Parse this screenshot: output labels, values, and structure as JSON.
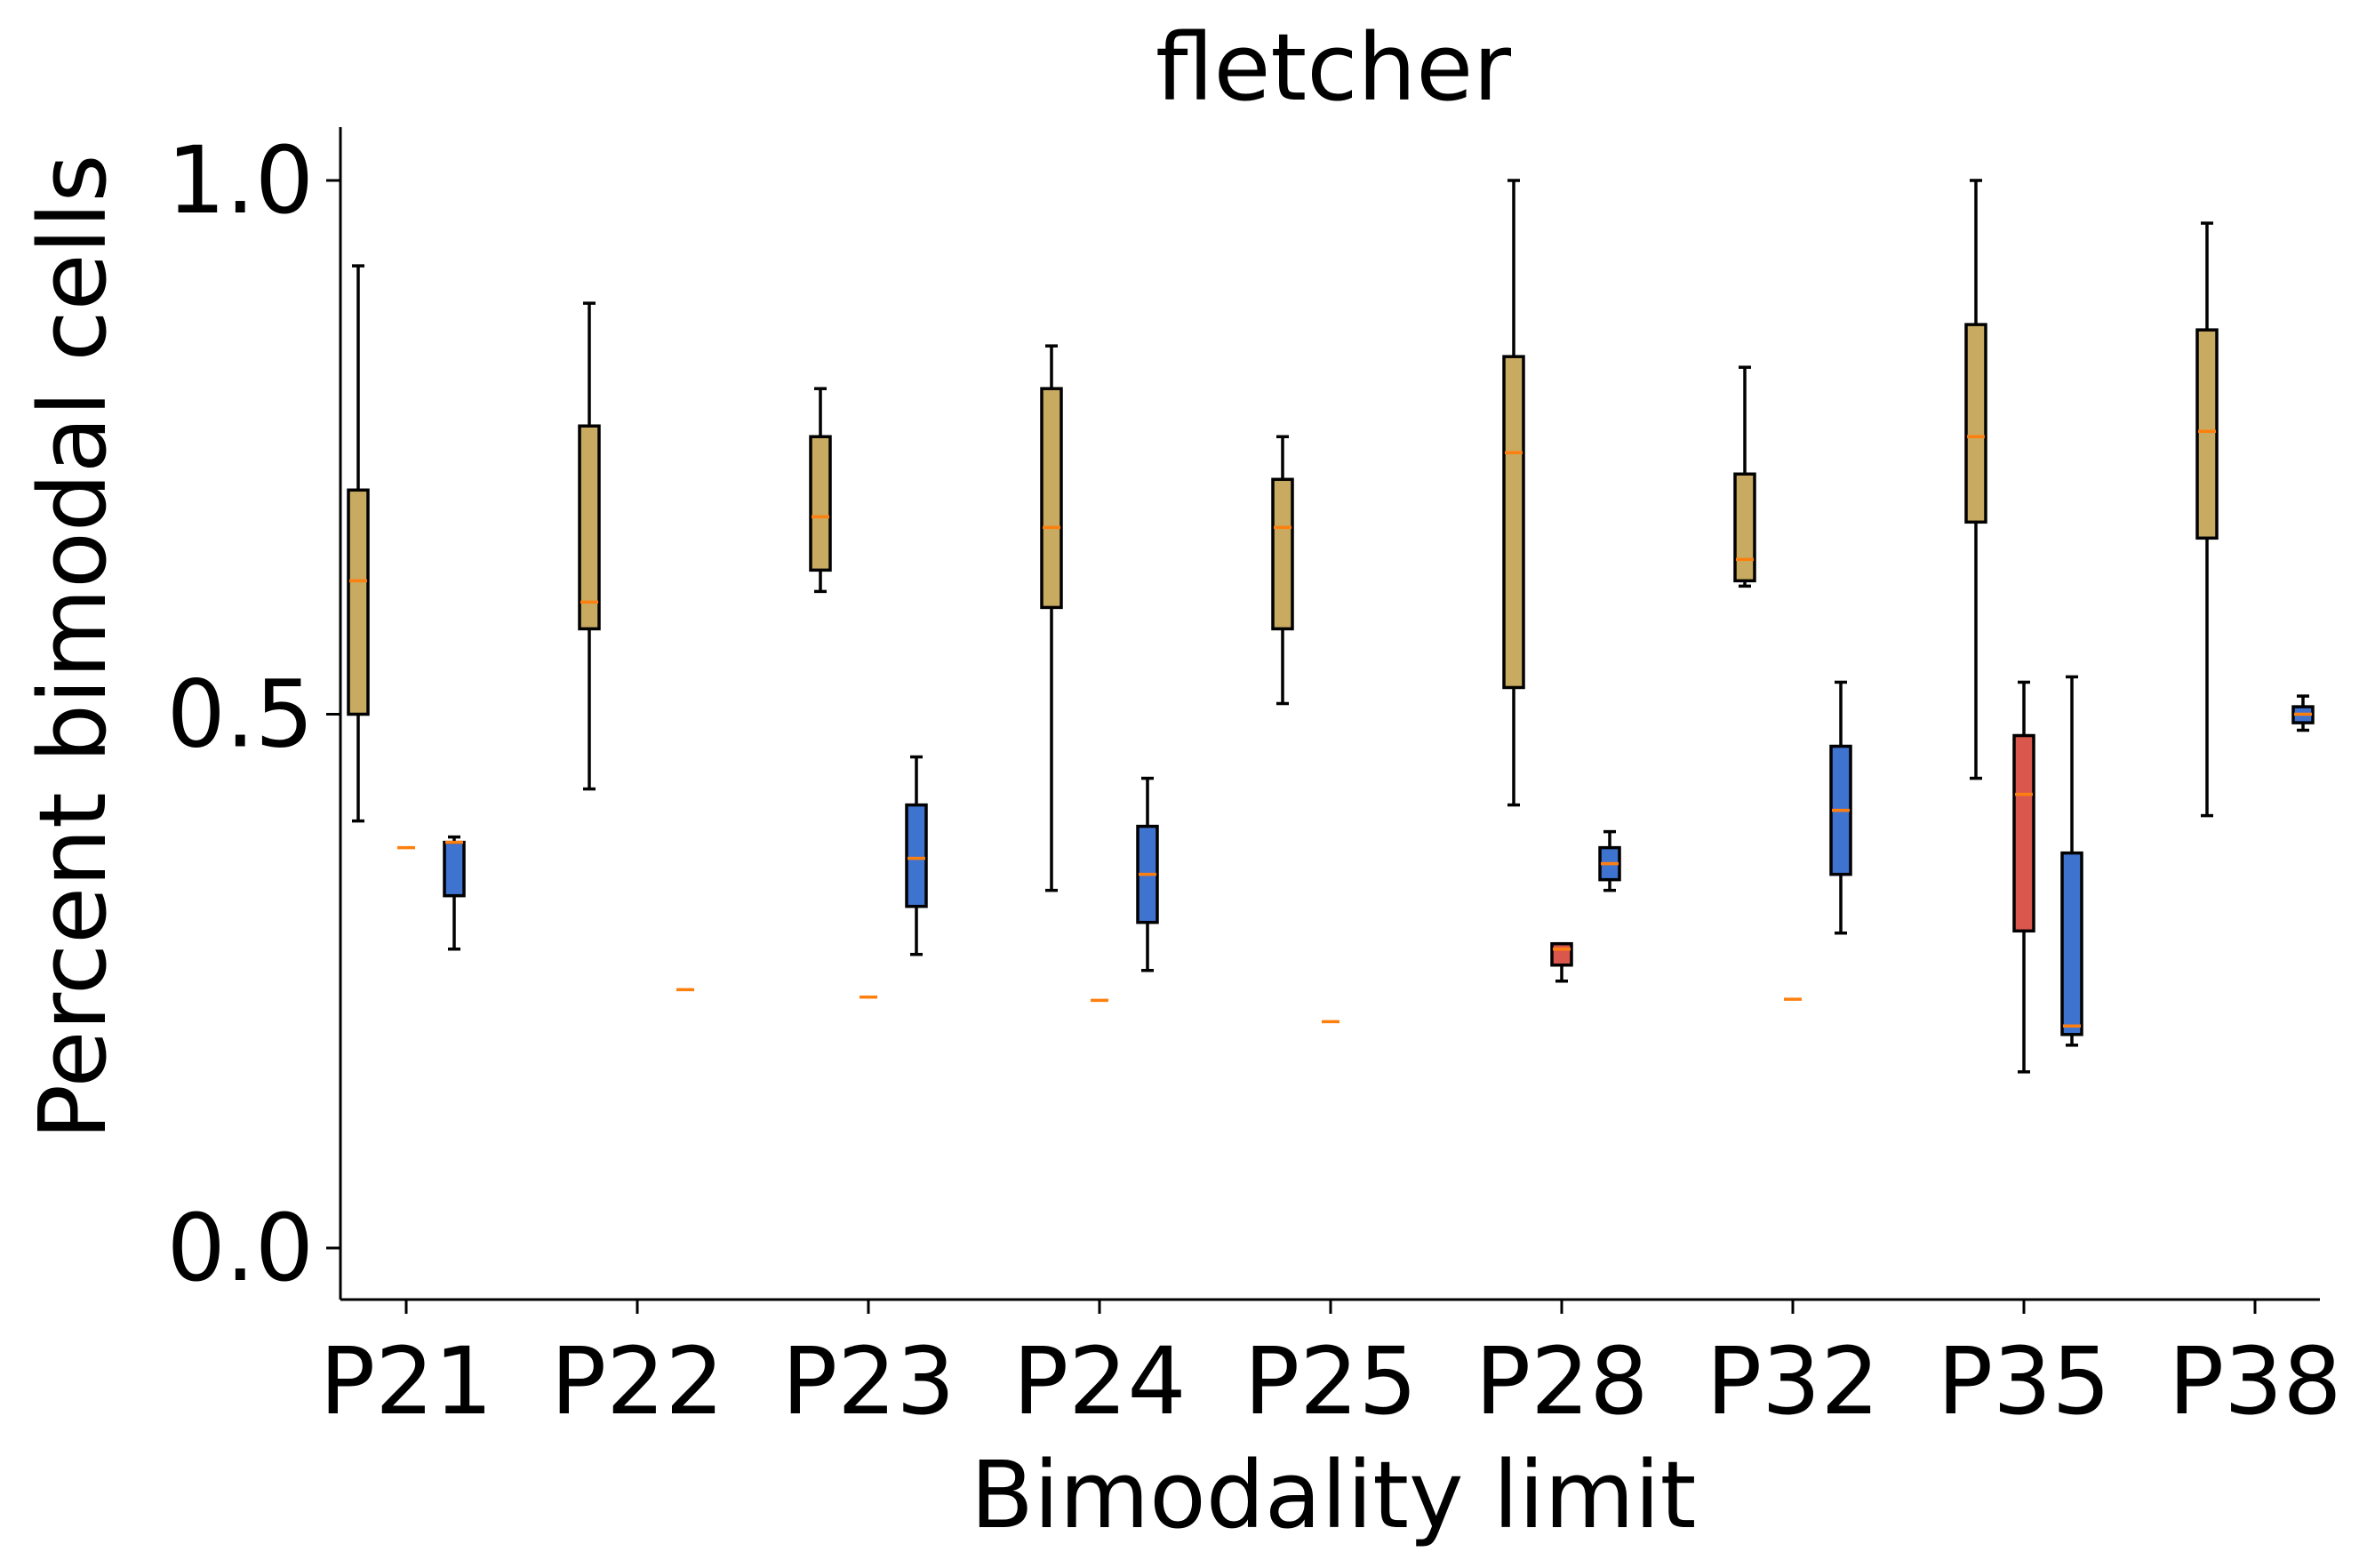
{
  "chart_data": {
    "type": "box",
    "title": "fletcher",
    "xlabel": "Bimodality limit",
    "ylabel": "Percent bimodal cells",
    "categories": [
      "P21",
      "P22",
      "P23",
      "P24",
      "P25",
      "P28",
      "P32",
      "P35",
      "P38"
    ],
    "yticks": [
      "0.0",
      "0.5",
      "1.0"
    ],
    "ylim": [
      -0.05,
      1.05
    ],
    "colors": {
      "gold": "#c8ab61",
      "red": "#d9574d",
      "blue": "#3f73d0",
      "median": "#ff7f0e",
      "edge": "#000000"
    },
    "series": [
      {
        "color_key": "gold",
        "boxes": [
          {
            "category": "P21",
            "whislo": 0.4,
            "q1": 0.5,
            "med": 0.625,
            "q3": 0.71,
            "whishi": 0.92
          },
          {
            "category": "P22",
            "whislo": 0.43,
            "q1": 0.58,
            "med": 0.605,
            "q3": 0.77,
            "whishi": 0.885
          },
          {
            "category": "P23",
            "whislo": 0.615,
            "q1": 0.635,
            "med": 0.685,
            "q3": 0.76,
            "whishi": 0.805
          },
          {
            "category": "P24",
            "whislo": 0.335,
            "q1": 0.6,
            "med": 0.675,
            "q3": 0.805,
            "whishi": 0.845
          },
          {
            "category": "P25",
            "whislo": 0.51,
            "q1": 0.58,
            "med": 0.675,
            "q3": 0.72,
            "whishi": 0.76
          },
          {
            "category": "P28",
            "whislo": 0.415,
            "q1": 0.525,
            "med": 0.745,
            "q3": 0.835,
            "whishi": 1.0
          },
          {
            "category": "P32",
            "whislo": 0.62,
            "q1": 0.625,
            "med": 0.645,
            "q3": 0.725,
            "whishi": 0.825
          },
          {
            "category": "P35",
            "whislo": 0.44,
            "q1": 0.68,
            "med": 0.76,
            "q3": 0.865,
            "whishi": 1.0
          },
          {
            "category": "P38",
            "whislo": 0.405,
            "q1": 0.665,
            "med": 0.765,
            "q3": 0.86,
            "whishi": 0.96
          }
        ]
      },
      {
        "color_key": "red",
        "boxes": [
          {
            "category": "P21",
            "whislo": 0.375,
            "q1": 0.375,
            "med": 0.375,
            "q3": 0.375,
            "whishi": 0.375
          },
          {
            "category": "P23",
            "whislo": 0.235,
            "q1": 0.235,
            "med": 0.235,
            "q3": 0.235,
            "whishi": 0.235
          },
          {
            "category": "P24",
            "whislo": 0.232,
            "q1": 0.232,
            "med": 0.232,
            "q3": 0.232,
            "whishi": 0.232
          },
          {
            "category": "P25",
            "whislo": 0.212,
            "q1": 0.212,
            "med": 0.212,
            "q3": 0.212,
            "whishi": 0.212
          },
          {
            "category": "P28",
            "whislo": 0.25,
            "q1": 0.265,
            "med": 0.28,
            "q3": 0.285,
            "whishi": 0.285
          },
          {
            "category": "P32",
            "whislo": 0.233,
            "q1": 0.233,
            "med": 0.233,
            "q3": 0.233,
            "whishi": 0.233
          },
          {
            "category": "P35",
            "whislo": 0.165,
            "q1": 0.297,
            "med": 0.425,
            "q3": 0.48,
            "whishi": 0.53
          }
        ]
      },
      {
        "color_key": "blue",
        "boxes": [
          {
            "category": "P21",
            "whislo": 0.28,
            "q1": 0.33,
            "med": 0.38,
            "q3": 0.38,
            "whishi": 0.385
          },
          {
            "category": "P22",
            "whislo": 0.242,
            "q1": 0.242,
            "med": 0.242,
            "q3": 0.242,
            "whishi": 0.242
          },
          {
            "category": "P23",
            "whislo": 0.275,
            "q1": 0.32,
            "med": 0.365,
            "q3": 0.415,
            "whishi": 0.46
          },
          {
            "category": "P24",
            "whislo": 0.26,
            "q1": 0.305,
            "med": 0.35,
            "q3": 0.395,
            "whishi": 0.44
          },
          {
            "category": "P28",
            "whislo": 0.335,
            "q1": 0.345,
            "med": 0.36,
            "q3": 0.375,
            "whishi": 0.39
          },
          {
            "category": "P32",
            "whislo": 0.295,
            "q1": 0.35,
            "med": 0.41,
            "q3": 0.47,
            "whishi": 0.53
          },
          {
            "category": "P35",
            "whislo": 0.19,
            "q1": 0.2,
            "med": 0.208,
            "q3": 0.37,
            "whishi": 0.535
          },
          {
            "category": "P38",
            "whislo": 0.485,
            "q1": 0.492,
            "med": 0.5,
            "q3": 0.507,
            "whishi": 0.517
          }
        ]
      }
    ]
  }
}
